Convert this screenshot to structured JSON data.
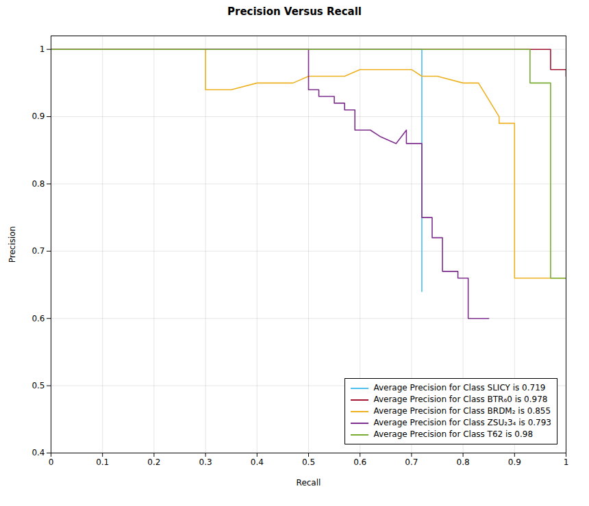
{
  "chart_data": {
    "type": "line",
    "title": "Precision Versus Recall",
    "xlabel": "Recall",
    "ylabel": "Precision",
    "xlim": [
      0,
      1.0
    ],
    "ylim": [
      0.4,
      1.02
    ],
    "xticks": [
      0,
      0.1,
      0.2,
      0.3,
      0.4,
      0.5,
      0.6,
      0.7,
      0.8,
      0.9,
      1.0
    ],
    "yticks": [
      0.4,
      0.5,
      0.6,
      0.7,
      0.8,
      0.9,
      1.0
    ],
    "grid": true,
    "legend": "lower right",
    "series": [
      {
        "name": "Average Precision for Class SLICY is 0.719",
        "color": "#4DBEEE",
        "x": [
          0.0,
          0.72,
          0.72,
          0.72,
          0.72,
          0.72,
          0.72,
          0.72,
          0.72,
          0.72
        ],
        "values": [
          1.0,
          1.0,
          0.97,
          0.96,
          0.88,
          0.86,
          0.85,
          0.76,
          0.72,
          0.64
        ]
      },
      {
        "name": "Average Precision for Class BTR₆0 is 0.978",
        "color": "#A2142F",
        "x": [
          0.0,
          0.97,
          0.97,
          1.0,
          1.0
        ],
        "values": [
          1.0,
          1.0,
          0.97,
          0.97,
          0.96
        ]
      },
      {
        "name": "Average Precision for Class BRDM₂ is 0.855",
        "color": "#EDB120",
        "x": [
          0.0,
          0.3,
          0.3,
          0.35,
          0.4,
          0.45,
          0.47,
          0.5,
          0.53,
          0.57,
          0.6,
          0.63,
          0.65,
          0.67,
          0.7,
          0.72,
          0.75,
          0.8,
          0.83,
          0.87,
          0.87,
          0.9,
          0.9,
          1.0
        ],
        "values": [
          1.0,
          1.0,
          0.94,
          0.94,
          0.95,
          0.95,
          0.95,
          0.96,
          0.96,
          0.96,
          0.97,
          0.97,
          0.97,
          0.97,
          0.97,
          0.96,
          0.96,
          0.95,
          0.95,
          0.9,
          0.89,
          0.89,
          0.66,
          0.66
        ]
      },
      {
        "name": "Average Precision for Class ZSU₂3₄ is 0.793",
        "color": "#7E2F8E",
        "x": [
          0.0,
          0.5,
          0.5,
          0.52,
          0.52,
          0.55,
          0.55,
          0.57,
          0.57,
          0.59,
          0.59,
          0.62,
          0.62,
          0.64,
          0.64,
          0.67,
          0.67,
          0.69,
          0.69,
          0.72,
          0.72,
          0.74,
          0.74,
          0.76,
          0.76,
          0.79,
          0.79,
          0.81,
          0.81,
          0.83,
          0.83,
          0.85
        ],
        "values": [
          1.0,
          1.0,
          0.94,
          0.94,
          0.93,
          0.93,
          0.92,
          0.92,
          0.91,
          0.91,
          0.88,
          0.88,
          0.88,
          0.87,
          0.87,
          0.86,
          0.86,
          0.88,
          0.86,
          0.86,
          0.75,
          0.75,
          0.72,
          0.72,
          0.67,
          0.67,
          0.66,
          0.66,
          0.6,
          0.6,
          0.6,
          0.6
        ]
      },
      {
        "name": "Average Precision for Class T62 is 0.98",
        "color": "#77AC30",
        "x": [
          0.0,
          0.93,
          0.93,
          0.97,
          0.97,
          1.0
        ],
        "values": [
          1.0,
          1.0,
          0.95,
          0.95,
          0.66,
          0.66
        ]
      }
    ]
  }
}
